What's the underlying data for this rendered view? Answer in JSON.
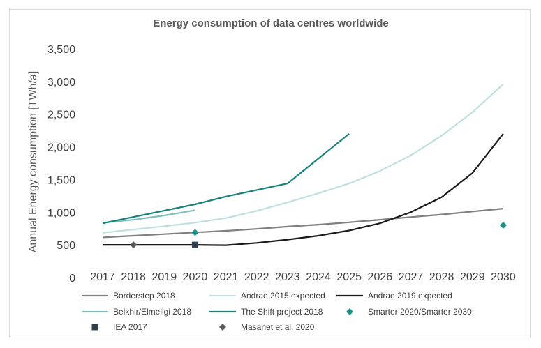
{
  "chart_data": {
    "type": "line",
    "title": "Energy consumption of data centres worldwide",
    "xlabel": "",
    "ylabel": "Annual Energy consumption [TWh/a]",
    "ylim": [
      0,
      3500
    ],
    "yticks": [
      0,
      500,
      1000,
      1500,
      2000,
      2500,
      3000,
      3500
    ],
    "ytick_labels": [
      "0",
      "500",
      "1,000",
      "1,500",
      "2,000",
      "2,500",
      "3,000",
      "3,500"
    ],
    "categories": [
      "2017",
      "2018",
      "2019",
      "2020",
      "2021",
      "2022",
      "2023",
      "2024",
      "2025",
      "2026",
      "2027",
      "2028",
      "2029",
      "2030"
    ],
    "grid": "none",
    "legend_position": "bottom",
    "series": [
      {
        "name": "Borderstep 2018",
        "kind": "line",
        "color": "#7f7f7f",
        "x": [
          2017,
          2018,
          2019,
          2020,
          2021,
          2022,
          2023,
          2024,
          2025,
          2026,
          2027,
          2028,
          2029,
          2030
        ],
        "values": [
          615,
          640,
          665,
          690,
          715,
          745,
          780,
          810,
          845,
          885,
          925,
          965,
          1010,
          1055
        ]
      },
      {
        "name": "Andrae 2015 expected",
        "kind": "line",
        "color": "#bfdfe1",
        "x": [
          2017,
          2018,
          2019,
          2020,
          2021,
          2022,
          2023,
          2024,
          2025,
          2026,
          2027,
          2028,
          2029,
          2030
        ],
        "values": [
          685,
          735,
          785,
          840,
          910,
          1020,
          1150,
          1290,
          1440,
          1630,
          1870,
          2170,
          2530,
          2960
        ]
      },
      {
        "name": "Andrae 2019 expected",
        "kind": "line",
        "color": "#1a1a1a",
        "x": [
          2017,
          2018,
          2019,
          2020,
          2021,
          2022,
          2023,
          2024,
          2025,
          2026,
          2027,
          2028,
          2029,
          2030
        ],
        "values": [
          500,
          500,
          500,
          500,
          495,
          530,
          580,
          640,
          720,
          830,
          1000,
          1230,
          1600,
          2200
        ]
      },
      {
        "name": "Belkhir/Elmeligi 2018",
        "kind": "line",
        "color": "#7fbfbf",
        "x": [
          2017,
          2018,
          2019,
          2020
        ],
        "values": [
          840,
          885,
          950,
          1030
        ]
      },
      {
        "name": "The Shift project 2018",
        "kind": "line",
        "color": "#17817b",
        "x": [
          2017,
          2020,
          2021,
          2022,
          2023,
          2025
        ],
        "values": [
          830,
          1120,
          1240,
          1340,
          1440,
          2200
        ]
      },
      {
        "name": "Smarter 2020/Smarter 2030",
        "kind": "marker",
        "marker": "diamond",
        "color": "#17918b",
        "x": [
          2020,
          2030
        ],
        "values": [
          690,
          800
        ]
      },
      {
        "name": "IEA 2017",
        "kind": "marker",
        "marker": "square",
        "color": "#2e3e4e",
        "x": [
          2020
        ],
        "values": [
          500
        ]
      },
      {
        "name": "Masanet et al. 2020",
        "kind": "marker",
        "marker": "diamond",
        "color": "#595959",
        "x": [
          2018
        ],
        "values": [
          500
        ]
      }
    ]
  }
}
